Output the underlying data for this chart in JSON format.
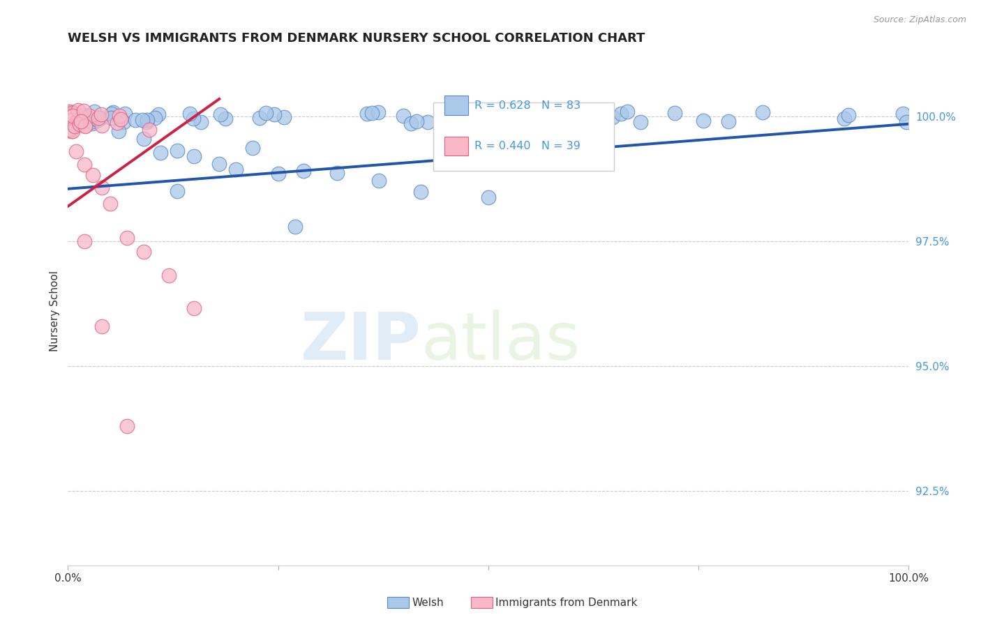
{
  "title": "WELSH VS IMMIGRANTS FROM DENMARK NURSERY SCHOOL CORRELATION CHART",
  "source": "Source: ZipAtlas.com",
  "ylabel": "Nursery School",
  "watermark_zip": "ZIP",
  "watermark_atlas": "atlas",
  "legend_blue_r": "R = 0.628",
  "legend_blue_n": "N = 83",
  "legend_pink_r": "R = 0.440",
  "legend_pink_n": "N = 39",
  "legend_label_blue": "Welsh",
  "legend_label_pink": "Immigrants from Denmark",
  "blue_color": "#aac8e8",
  "blue_edge_color": "#5588cc",
  "blue_line_color": "#2255aa",
  "pink_color": "#f8b8c8",
  "pink_edge_color": "#e06080",
  "pink_line_color": "#cc2244",
  "ytick_color": "#4499dd",
  "xlim": [
    0.0,
    1.0
  ],
  "ylim": [
    91.0,
    101.2
  ],
  "y_ticks": [
    92.5,
    95.0,
    97.5,
    100.0
  ],
  "y_tick_labels": [
    "92.5%",
    "95.0%",
    "97.5%",
    "100.0%"
  ],
  "blue_line_x0": 0.0,
  "blue_line_y0": 98.55,
  "blue_line_x1": 1.0,
  "blue_line_y1": 99.85,
  "pink_line_x0": 0.0,
  "pink_line_y0": 98.2,
  "pink_line_x1": 0.18,
  "pink_line_y1": 100.35
}
